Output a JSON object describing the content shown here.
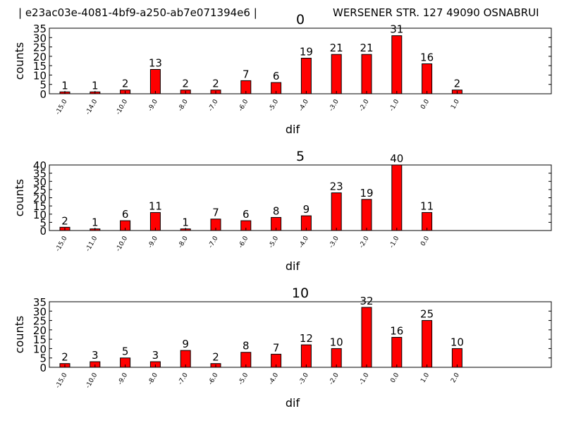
{
  "header": {
    "id_text": "| e23ac03e-4081-4bf9-a250-ab7e071394e6 |",
    "address_text": "WERSENER STR. 127  49090 OSNABRUI"
  },
  "colors": {
    "bar": "#ff0000",
    "bar_edge": "#000000",
    "axes": "#000000"
  },
  "chart_data": [
    {
      "type": "bar",
      "title": "0",
      "xlabel": "dif",
      "ylabel": "counts",
      "ylim": [
        0,
        35
      ],
      "yticks": [
        0,
        5,
        10,
        15,
        20,
        25,
        30,
        35
      ],
      "categories": [
        "-15.0",
        "-14.0",
        "-10.0",
        "-9.0",
        "-8.0",
        "-7.0",
        "-6.0",
        "-5.0",
        "-4.0",
        "-3.0",
        "-2.0",
        "-1.0",
        "0.0",
        "1.0"
      ],
      "values": [
        1,
        1,
        2,
        13,
        2,
        2,
        7,
        6,
        19,
        21,
        21,
        31,
        16,
        2
      ]
    },
    {
      "type": "bar",
      "title": "5",
      "xlabel": "dif",
      "ylabel": "counts",
      "ylim": [
        0,
        40
      ],
      "yticks": [
        0,
        5,
        10,
        15,
        20,
        25,
        30,
        35,
        40
      ],
      "categories": [
        "-15.0",
        "-11.0",
        "-10.0",
        "-9.0",
        "-8.0",
        "-7.0",
        "-6.0",
        "-5.0",
        "-4.0",
        "-3.0",
        "-2.0",
        "-1.0",
        "0.0"
      ],
      "values": [
        2,
        1,
        6,
        11,
        1,
        7,
        6,
        8,
        9,
        23,
        19,
        40,
        11
      ]
    },
    {
      "type": "bar",
      "title": "10",
      "xlabel": "dif",
      "ylabel": "counts",
      "ylim": [
        0,
        35
      ],
      "yticks": [
        0,
        5,
        10,
        15,
        20,
        25,
        30,
        35
      ],
      "categories": [
        "-15.0",
        "-10.0",
        "-9.0",
        "-8.0",
        "-7.0",
        "-6.0",
        "-5.0",
        "-4.0",
        "-3.0",
        "-2.0",
        "-1.0",
        "0.0",
        "1.0",
        "2.0"
      ],
      "values": [
        2,
        3,
        5,
        3,
        9,
        2,
        8,
        7,
        12,
        10,
        32,
        16,
        25,
        10
      ]
    }
  ]
}
